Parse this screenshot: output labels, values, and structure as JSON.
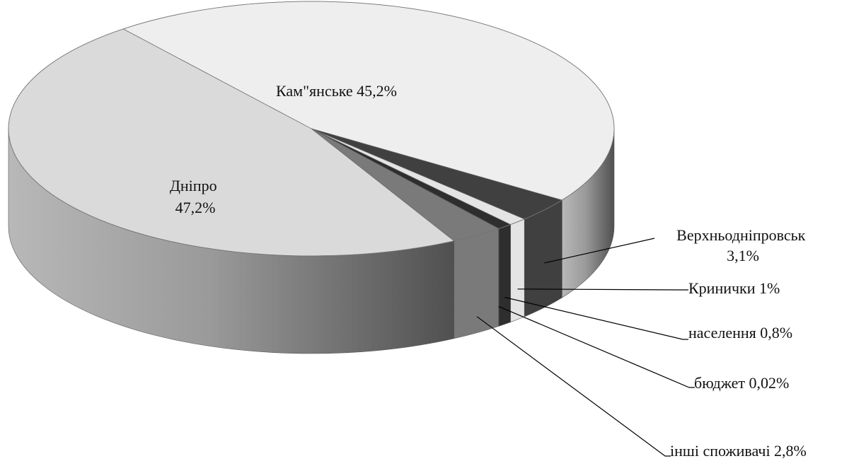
{
  "chart_data": {
    "type": "pie",
    "three_d": true,
    "title": "",
    "legend": "none",
    "slices": [
      {
        "key": "kamianske",
        "label": "Кам\"янське 45,2%",
        "value": 45.2,
        "color": "#eeeeee"
      },
      {
        "key": "verkhnodniprovsk",
        "label": "Верхньодніпровськ 3,1%",
        "value": 3.1,
        "color": "#404040"
      },
      {
        "key": "krynychky",
        "label": "Кринички 1%",
        "value": 1.0,
        "color": "#e4e4e4"
      },
      {
        "key": "naselennia",
        "label": "населення 0,8%",
        "value": 0.8,
        "color": "#2e2e2e"
      },
      {
        "key": "biudzhet",
        "label": "бюджет 0,02%",
        "value": 0.02,
        "color": "#1c1c1c"
      },
      {
        "key": "inshi",
        "label": "інші споживачі 2,8%",
        "value": 2.8,
        "color": "#7a7a7a"
      },
      {
        "key": "dnipro",
        "label": "Дніпро 47,2%",
        "label_lines": [
          "Дніпро",
          "47,2%"
        ],
        "value": 47.2,
        "color": "#dadada"
      }
    ]
  }
}
